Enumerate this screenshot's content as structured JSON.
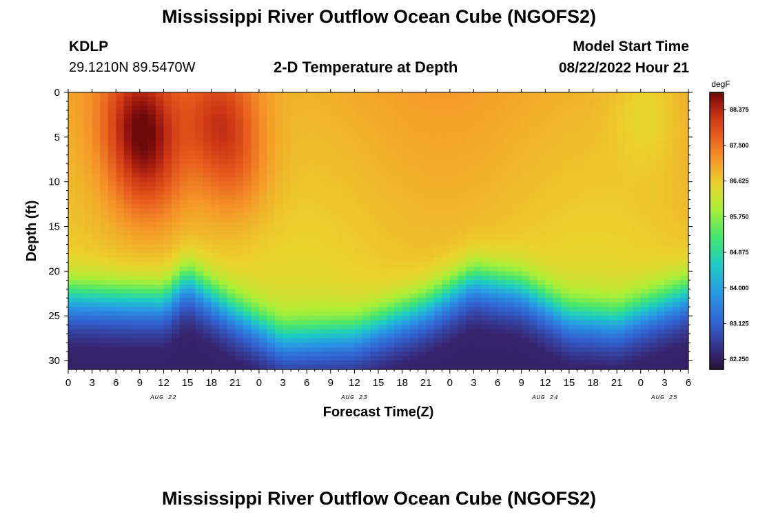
{
  "header": {
    "title": "Mississippi River Outflow Ocean Cube (NGOFS2)",
    "station": "KDLP",
    "coords": "29.1210N  89.5470W",
    "subtitle": "2-D Temperature at Depth",
    "model_start_label": "Model Start Time",
    "model_start_value": "08/22/2022 Hour 21"
  },
  "footer": {
    "title": "Mississippi River Outflow Ocean Cube (NGOFS2)"
  },
  "chart_data": {
    "type": "heatmap",
    "title": "2-D Temperature at Depth",
    "xlabel": "Forecast Time(Z)",
    "ylabel": "Depth (ft)",
    "x_range_hours": [
      0,
      78
    ],
    "y_range_ft": [
      0,
      31
    ],
    "x_ticks": [
      "0",
      "3",
      "6",
      "9",
      "12",
      "15",
      "18",
      "21",
      "0",
      "3",
      "6",
      "9",
      "12",
      "15",
      "18",
      "21",
      "0",
      "3",
      "6",
      "9",
      "12",
      "15",
      "18",
      "21",
      "0",
      "3",
      "6"
    ],
    "y_ticks": [
      "0",
      "5",
      "10",
      "15",
      "20",
      "25",
      "30"
    ],
    "date_labels": [
      {
        "label": "AUG 22",
        "hour": 12
      },
      {
        "label": "AUG 23",
        "hour": 36
      },
      {
        "label": "AUG 24",
        "hour": 60
      },
      {
        "label": "AUG 25",
        "hour": 75
      }
    ],
    "colorbar": {
      "units": "degF",
      "min": 82.0,
      "max": 88.8,
      "tick_labels": [
        "88.375",
        "87.500",
        "86.625",
        "85.750",
        "84.875",
        "84.000",
        "83.125",
        "82.250"
      ],
      "tick_values": [
        88.375,
        87.5,
        86.625,
        85.75,
        84.875,
        84.0,
        83.125,
        82.25
      ]
    },
    "model": {
      "surface_base_degF": 87.0,
      "warm_cores": [
        {
          "hour": 9,
          "depth_ft": 3,
          "amplitude_degF": 1.4
        },
        {
          "hour": 10,
          "depth_ft": 9,
          "amplitude_degF": 0.9
        },
        {
          "hour": 19,
          "depth_ft": 3,
          "amplitude_degF": 1.1
        },
        {
          "hour": 21,
          "depth_ft": 9,
          "amplitude_degF": 0.6
        },
        {
          "hour": 73,
          "depth_ft": 2,
          "amplitude_degF": -0.4
        }
      ],
      "thermocline": [
        {
          "hour": 0,
          "depth_ft": 22.5
        },
        {
          "hour": 12,
          "depth_ft": 22.8
        },
        {
          "hour": 15,
          "depth_ft": 20.5
        },
        {
          "hour": 21,
          "depth_ft": 24.0
        },
        {
          "hour": 27,
          "depth_ft": 27.0
        },
        {
          "hour": 36,
          "depth_ft": 26.5
        },
        {
          "hour": 45,
          "depth_ft": 23.5
        },
        {
          "hour": 51,
          "depth_ft": 20.5
        },
        {
          "hour": 57,
          "depth_ft": 21.5
        },
        {
          "hour": 63,
          "depth_ft": 24.5
        },
        {
          "hour": 69,
          "depth_ft": 25.0
        },
        {
          "hour": 78,
          "depth_ft": 22.0
        }
      ],
      "bottom_degF": 82.3
    },
    "grid": false
  }
}
